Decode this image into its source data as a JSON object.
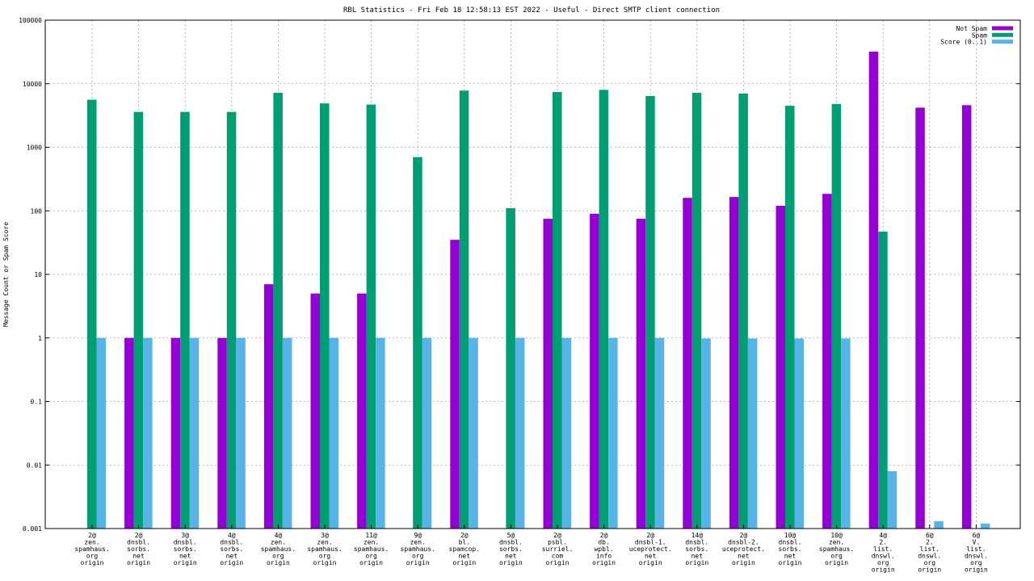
{
  "chart_data": {
    "type": "bar",
    "title": "RBL Statistics - Fri Feb 18 12:58:13 EST 2022 - Useful - Direct SMTP client connection",
    "ylabel": "Message Count or Spam Score",
    "yscale": "log",
    "ylim": [
      0.001,
      100000
    ],
    "yticks": [
      "0.001",
      "0.01",
      "0.1",
      "1",
      "10",
      "100",
      "1000",
      "10000",
      "100000"
    ],
    "grid": true,
    "legend_position": "top-right",
    "categories": [
      [
        "2@",
        "zen.",
        "spamhaus.",
        "org",
        "origin"
      ],
      [
        "2@",
        "dnsbl.",
        "sorbs.",
        "net",
        "origin"
      ],
      [
        "3@",
        "dnsbl.",
        "sorbs.",
        "net",
        "origin"
      ],
      [
        "4@",
        "dnsbl.",
        "sorbs.",
        "net",
        "origin"
      ],
      [
        "4@",
        "zen.",
        "spamhaus.",
        "org",
        "origin"
      ],
      [
        "3@",
        "zen.",
        "spamhaus.",
        "org",
        "origin"
      ],
      [
        "11@",
        "zen.",
        "spamhaus.",
        "org",
        "origin"
      ],
      [
        "9@",
        "zen.",
        "spamhaus.",
        "org",
        "origin"
      ],
      [
        "2@",
        "bl.",
        "spamcop.",
        "net",
        "origin"
      ],
      [
        "5@",
        "dnsbl.",
        "sorbs.",
        "net",
        "origin"
      ],
      [
        "2@",
        "psbl.",
        "surriel.",
        "com",
        "origin"
      ],
      [
        "2@",
        "db.",
        "wpbl.",
        "info",
        "origin"
      ],
      [
        "2@",
        "dnsbl-1.",
        "uceprotect.",
        "net",
        "origin"
      ],
      [
        "14@",
        "dnsbl.",
        "sorbs.",
        "net",
        "origin"
      ],
      [
        "2@",
        "dnsbl-2.",
        "uceprotect.",
        "net",
        "origin"
      ],
      [
        "10@",
        "dnsbl.",
        "sorbs.",
        "net",
        "origin"
      ],
      [
        "10@",
        "zen.",
        "spamhaus.",
        "org",
        "origin"
      ],
      [
        "4@",
        "2.",
        "list.",
        "dnswl.",
        "org",
        "origin"
      ],
      [
        "6@",
        "2.",
        "list.",
        "dnswl.",
        "org",
        "origin"
      ],
      [
        "6@",
        "V.",
        "list.",
        "dnswl.",
        "org",
        "origin"
      ]
    ],
    "series": [
      {
        "name": "Not Spam",
        "color": "#9400d3",
        "values": [
          null,
          1,
          1,
          1,
          7,
          5,
          5,
          null,
          35,
          null,
          75,
          90,
          75,
          160,
          165,
          120,
          185,
          32000,
          4200,
          4600
        ]
      },
      {
        "name": "Spam",
        "color": "#009e73",
        "values": [
          5600,
          3600,
          3600,
          3600,
          7200,
          4900,
          4700,
          700,
          7800,
          110,
          7400,
          8000,
          6400,
          7200,
          7000,
          4500,
          4800,
          47,
          null,
          null
        ]
      },
      {
        "name": "Score (0..1)",
        "color": "#56b4e9",
        "values": [
          1,
          1,
          1,
          1,
          1,
          1,
          1,
          1,
          1,
          1,
          1,
          1,
          1,
          0.98,
          0.98,
          0.98,
          0.98,
          0.008,
          0.0013,
          0.0012
        ]
      }
    ]
  }
}
